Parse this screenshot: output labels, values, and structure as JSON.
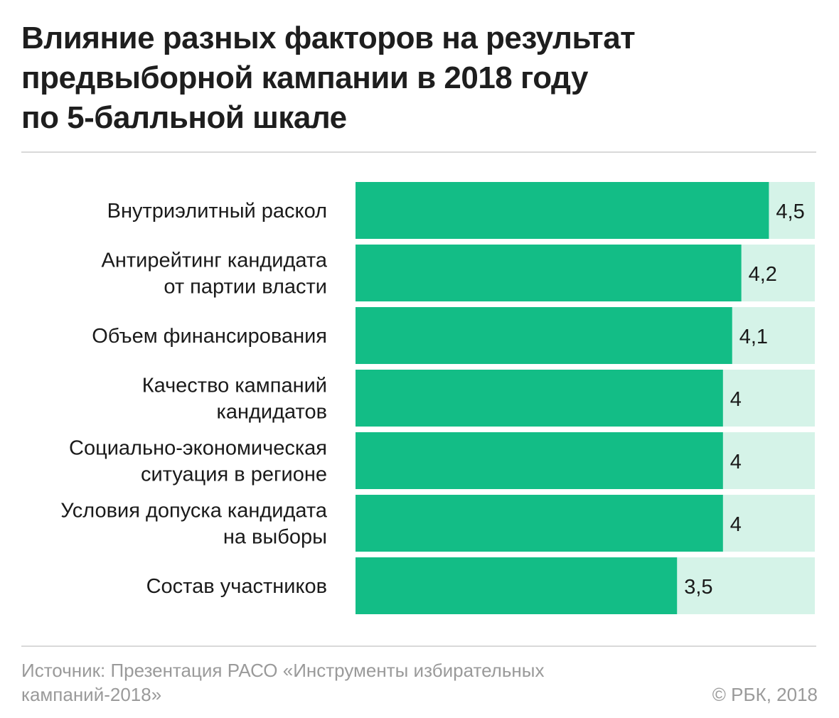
{
  "title_lines": [
    "Влияние разных факторов на результат",
    "предвыборной кампании в 2018 году",
    "по 5-балльной шкале"
  ],
  "source_lines": [
    "Источник: Презентация РАСО «Инструменты избирательных",
    "кампаний-2018»"
  ],
  "copyright": "© РБК, 2018",
  "colors": {
    "bar": "#13bd86",
    "track": "#d5f3e8"
  },
  "chart_data": {
    "type": "bar",
    "orientation": "horizontal",
    "xlim": [
      0,
      5
    ],
    "categories": [
      [
        "Внутриэлитный раскол"
      ],
      [
        "Антирейтинг кандидата",
        "от партии власти"
      ],
      [
        "Объем финансирования"
      ],
      [
        "Качество кампаний",
        "кандидатов"
      ],
      [
        "Социально-экономическая",
        "ситуация в регионе"
      ],
      [
        "Условия допуска кандидата",
        "на выборы"
      ],
      [
        "Состав участников"
      ]
    ],
    "values": [
      4.5,
      4.2,
      4.1,
      4,
      4,
      4,
      3.5
    ],
    "value_labels": [
      "4,5",
      "4,2",
      "4,1",
      "4",
      "4",
      "4",
      "3,5"
    ]
  }
}
